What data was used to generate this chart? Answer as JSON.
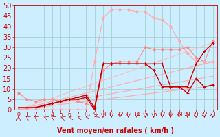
{
  "xlabel": "Vent moyen/en rafales ( km/h )",
  "bg_color": "#cceeff",
  "grid_color": "#99cccc",
  "xlim": [
    -0.5,
    23.5
  ],
  "ylim": [
    0,
    50
  ],
  "xticks": [
    0,
    1,
    2,
    3,
    4,
    5,
    6,
    7,
    8,
    9,
    10,
    11,
    12,
    13,
    14,
    15,
    16,
    17,
    18,
    19,
    20,
    21,
    22,
    23
  ],
  "yticks": [
    0,
    5,
    10,
    15,
    20,
    25,
    30,
    35,
    40,
    45,
    50
  ],
  "lines": [
    {
      "x": [
        0,
        1,
        2,
        3,
        4,
        5,
        6,
        7,
        8,
        9,
        10,
        11,
        12,
        13,
        14,
        15,
        16,
        17,
        18,
        19,
        20,
        21,
        22,
        23
      ],
      "y": [
        0,
        0.5,
        1.0,
        1.5,
        2.0,
        2.5,
        3.0,
        3.5,
        4.0,
        4.5,
        5.0,
        5.5,
        6.0,
        6.5,
        7.0,
        7.5,
        8.0,
        8.5,
        9.0,
        9.5,
        10.0,
        10.5,
        11.0,
        11.5
      ],
      "color": "#ffaaaa",
      "lw": 0.8,
      "marker": null,
      "ms": 0
    },
    {
      "x": [
        0,
        1,
        2,
        3,
        4,
        5,
        6,
        7,
        8,
        9,
        10,
        11,
        12,
        13,
        14,
        15,
        16,
        17,
        18,
        19,
        20,
        21,
        22,
        23
      ],
      "y": [
        0,
        0.7,
        1.4,
        2.1,
        2.8,
        3.5,
        4.2,
        4.9,
        5.6,
        6.3,
        7.0,
        7.7,
        8.4,
        9.1,
        9.8,
        10.5,
        11.2,
        11.9,
        12.6,
        13.3,
        14.0,
        14.7,
        15.4,
        16.1
      ],
      "color": "#ffaaaa",
      "lw": 0.8,
      "marker": null,
      "ms": 0
    },
    {
      "x": [
        0,
        1,
        2,
        3,
        4,
        5,
        6,
        7,
        8,
        9,
        10,
        11,
        12,
        13,
        14,
        15,
        16,
        17,
        18,
        19,
        20,
        21,
        22,
        23
      ],
      "y": [
        0,
        1.0,
        2.0,
        3.0,
        4.0,
        5.0,
        6.0,
        7.0,
        8.0,
        9.0,
        10.0,
        11.0,
        12.0,
        13.0,
        14.0,
        15.0,
        16.0,
        17.0,
        18.0,
        19.0,
        20.0,
        21.0,
        22.0,
        23.0
      ],
      "color": "#ffaaaa",
      "lw": 0.8,
      "marker": null,
      "ms": 0
    },
    {
      "x": [
        0,
        1,
        2,
        3,
        4,
        5,
        6,
        7,
        8,
        9,
        10,
        11,
        12,
        13,
        14,
        15,
        16,
        17,
        18,
        19,
        20,
        21,
        22,
        23
      ],
      "y": [
        0,
        1.4,
        2.8,
        4.2,
        5.6,
        7.0,
        8.4,
        9.8,
        11.2,
        12.6,
        14.0,
        15.4,
        16.8,
        18.2,
        19.6,
        21.0,
        22.4,
        23.8,
        25.2,
        26.6,
        28.0,
        29.4,
        30.8,
        32.2
      ],
      "color": "#ffbbbb",
      "lw": 0.8,
      "marker": null,
      "ms": 0
    },
    {
      "x": [
        0,
        1,
        2,
        3,
        4,
        5,
        6,
        7,
        8,
        9,
        10,
        11,
        12,
        13,
        14,
        15,
        16,
        17,
        18,
        19,
        20,
        21,
        22,
        23
      ],
      "y": [
        8,
        5,
        4,
        5,
        5,
        4,
        5,
        4,
        3,
        1,
        19,
        22,
        23,
        23,
        23,
        30,
        29,
        29,
        29,
        29,
        30,
        25,
        23,
        33
      ],
      "color": "#ff8888",
      "lw": 0.8,
      "marker": "D",
      "ms": 2
    },
    {
      "x": [
        0,
        1,
        2,
        3,
        4,
        5,
        6,
        7,
        8,
        9,
        10,
        11,
        12,
        13,
        14,
        15,
        16,
        17,
        18,
        19,
        20,
        21,
        22,
        23
      ],
      "y": [
        0,
        0,
        0,
        0,
        0,
        0,
        0,
        0,
        0,
        23,
        44,
        48,
        48,
        48,
        47,
        47,
        44,
        43,
        40,
        33,
        27,
        23,
        23,
        23
      ],
      "color": "#ffaaaa",
      "lw": 0.8,
      "marker": "D",
      "ms": 2
    },
    {
      "x": [
        0,
        1,
        2,
        3,
        4,
        5,
        6,
        7,
        8,
        9,
        10,
        11,
        12,
        13,
        14,
        15,
        16,
        17,
        18,
        19,
        20,
        21,
        22,
        23
      ],
      "y": [
        1,
        1,
        1,
        2,
        3,
        4,
        5,
        5,
        6,
        0,
        22,
        22,
        22,
        22,
        22,
        22,
        19,
        11,
        11,
        11,
        8,
        15,
        11,
        12
      ],
      "color": "#cc0000",
      "lw": 1.0,
      "marker": "+",
      "ms": 3
    },
    {
      "x": [
        0,
        1,
        2,
        3,
        4,
        5,
        6,
        7,
        8,
        9,
        10,
        11,
        12,
        13,
        14,
        15,
        16,
        17,
        18,
        19,
        20,
        21,
        22,
        23
      ],
      "y": [
        1,
        1,
        1,
        2,
        3,
        4,
        5,
        6,
        7,
        1,
        22,
        22,
        22,
        22,
        22,
        22,
        22,
        22,
        11,
        11,
        11,
        22,
        28,
        32
      ],
      "color": "#cc0000",
      "lw": 1.0,
      "marker": "+",
      "ms": 3
    }
  ],
  "arrow_angles": [
    180,
    210,
    210,
    225,
    210,
    225,
    240,
    240,
    270,
    315,
    0,
    0,
    0,
    0,
    0,
    0,
    0,
    0,
    0,
    0,
    0,
    0,
    0,
    0
  ],
  "xlabel_color": "#cc0000",
  "tick_color": "#cc0000",
  "xlabel_fontsize": 7,
  "ytick_fontsize": 7,
  "xtick_fontsize": 5.5
}
